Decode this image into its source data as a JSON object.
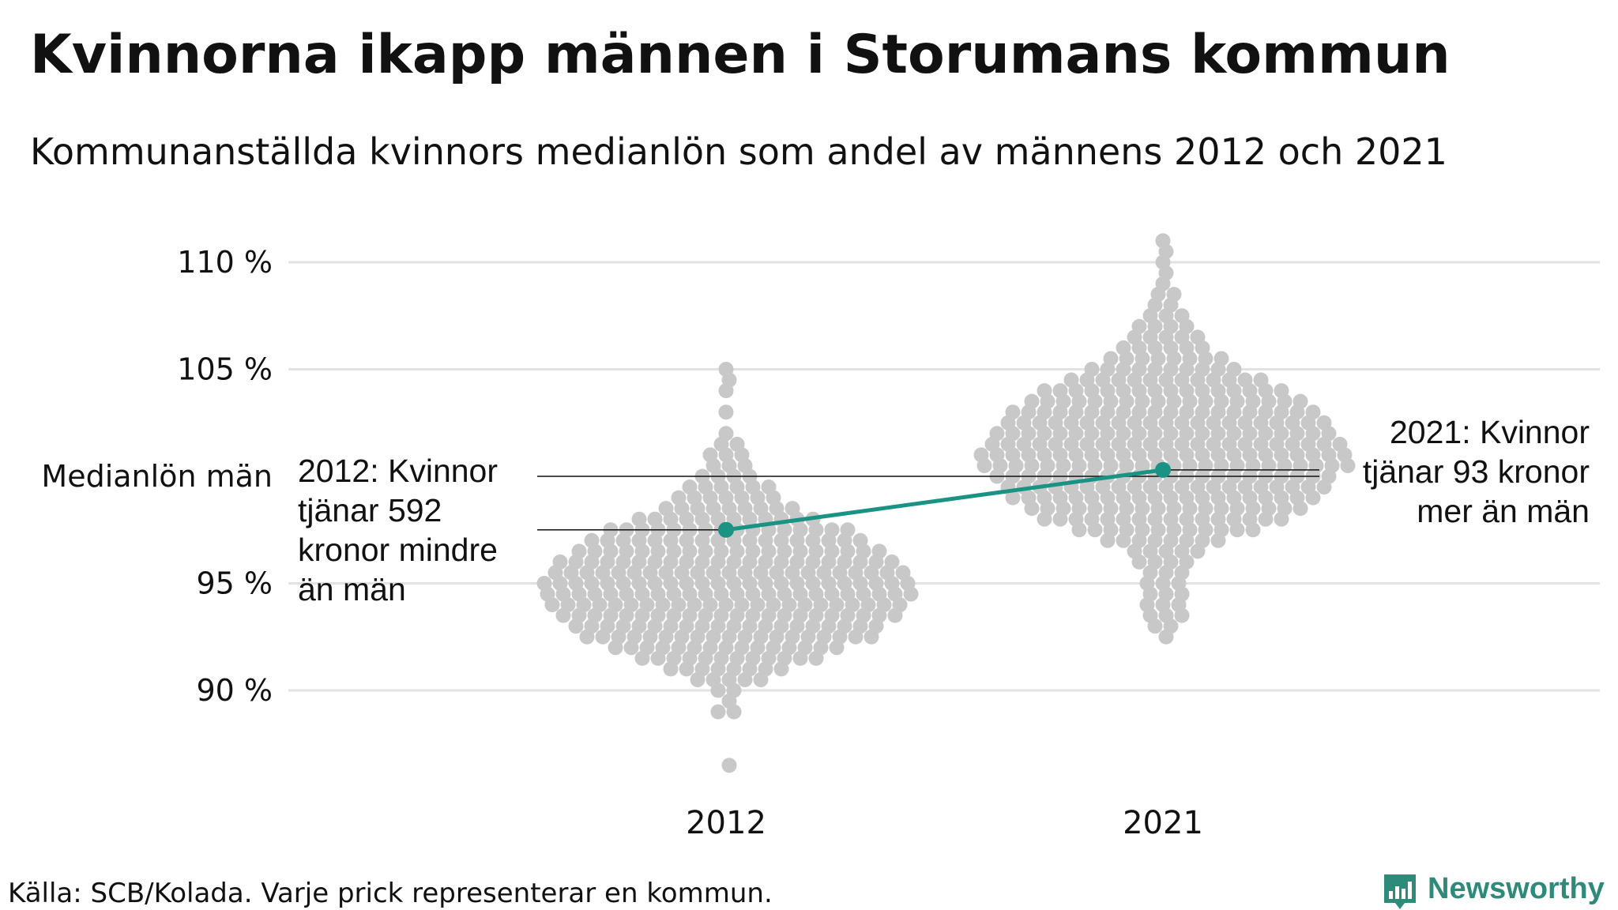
{
  "title": "Kvinnorna ikapp männen i Storumans kommun",
  "subtitle": "Kommunanställda kvinnors medianlön som andel av männens 2012 och 2021",
  "source": "Källa: SCB/Kolada. Varje prick representerar en kommun.",
  "brand": "Newsworthy",
  "colors": {
    "dots": "#c8c8c8",
    "highlight": "#1a9384",
    "grid": "#e2e2e2",
    "brand": "#2e8b7a"
  },
  "chart_data": {
    "type": "scatter",
    "title": "Kvinnorna ikapp männen i Storumans kommun",
    "subtitle": "Kommunanställda kvinnors medianlön som andel av männens 2012 och 2021",
    "categories": [
      "2012",
      "2021"
    ],
    "ylim": [
      86,
      112
    ],
    "yticks": [
      {
        "value": 90,
        "label": "90 %"
      },
      {
        "value": 95,
        "label": "95 %"
      },
      {
        "value": 100,
        "label": "Medianlön män"
      },
      {
        "value": 105,
        "label": "105 %"
      },
      {
        "value": 110,
        "label": "110 %"
      }
    ],
    "grid": true,
    "highlight": {
      "name": "Storumans kommun",
      "points": [
        {
          "x": "2012",
          "y": 97.5
        },
        {
          "x": "2021",
          "y": 100.3
        }
      ]
    },
    "annotations": [
      {
        "year": "2012",
        "lines": [
          "2012: Kvinnor",
          "tjänar 592",
          "kronor mindre",
          "än män"
        ]
      },
      {
        "year": "2021",
        "lines": [
          "2021: Kvinnor",
          "tjänar 93 kronor",
          "mer än män"
        ]
      }
    ],
    "beeswarm": [
      {
        "year": "2012",
        "distribution_count": [
          [
            86.5,
            1
          ],
          [
            89,
            2
          ],
          [
            89.5,
            1
          ],
          [
            90,
            2
          ],
          [
            90.5,
            5
          ],
          [
            91,
            8
          ],
          [
            91.5,
            12
          ],
          [
            92,
            15
          ],
          [
            92.5,
            19
          ],
          [
            93,
            20
          ],
          [
            93.5,
            22
          ],
          [
            94,
            23
          ],
          [
            94.5,
            24
          ],
          [
            95,
            24
          ],
          [
            95.5,
            23
          ],
          [
            96,
            22
          ],
          [
            96.5,
            20
          ],
          [
            97,
            18
          ],
          [
            97.5,
            16
          ],
          [
            98,
            12
          ],
          [
            98.5,
            9
          ],
          [
            99,
            7
          ],
          [
            99.5,
            6
          ],
          [
            100,
            4
          ],
          [
            100.5,
            3
          ],
          [
            101,
            3
          ],
          [
            101.5,
            2
          ],
          [
            102,
            1
          ],
          [
            103,
            1
          ],
          [
            104,
            1
          ],
          [
            104.5,
            1
          ],
          [
            105,
            1
          ]
        ]
      },
      {
        "year": "2021",
        "distribution_count": [
          [
            92.5,
            1
          ],
          [
            93,
            2
          ],
          [
            93.5,
            3
          ],
          [
            94,
            3
          ],
          [
            94.5,
            3
          ],
          [
            95,
            3
          ],
          [
            95.5,
            3
          ],
          [
            96,
            4
          ],
          [
            96.5,
            5
          ],
          [
            97,
            8
          ],
          [
            97.5,
            12
          ],
          [
            98,
            16
          ],
          [
            98.5,
            18
          ],
          [
            99,
            20
          ],
          [
            99.5,
            21
          ],
          [
            100,
            22
          ],
          [
            100.5,
            24
          ],
          [
            101,
            24
          ],
          [
            101.5,
            23
          ],
          [
            102,
            22
          ],
          [
            102.5,
            21
          ],
          [
            103,
            20
          ],
          [
            103.5,
            18
          ],
          [
            104,
            16
          ],
          [
            104.5,
            13
          ],
          [
            105,
            10
          ],
          [
            105.5,
            8
          ],
          [
            106,
            6
          ],
          [
            106.5,
            5
          ],
          [
            107,
            4
          ],
          [
            107.5,
            3
          ],
          [
            108,
            2
          ],
          [
            108.5,
            2
          ],
          [
            109,
            1
          ],
          [
            109.5,
            1
          ],
          [
            110,
            1
          ],
          [
            110.5,
            1
          ],
          [
            111,
            1
          ]
        ]
      }
    ]
  }
}
